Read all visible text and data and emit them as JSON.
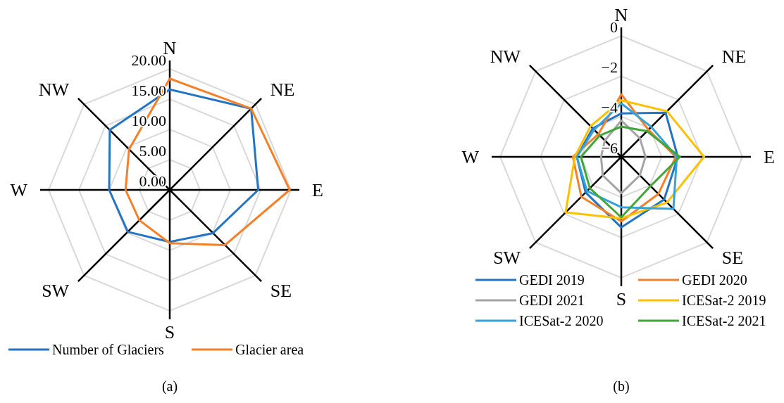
{
  "chart_data": [
    {
      "type": "radar",
      "title": "(a)",
      "categories": [
        "N",
        "NE",
        "E",
        "SE",
        "S",
        "SW",
        "W",
        "NW"
      ],
      "ylim": [
        0,
        20
      ],
      "yticks": [
        {
          "value": 0,
          "label": "0.00"
        },
        {
          "value": 5,
          "label": "5.00"
        },
        {
          "value": 10,
          "label": "10.00"
        },
        {
          "value": 15,
          "label": "15.00"
        },
        {
          "value": 20,
          "label": "20.00"
        }
      ],
      "grid": true,
      "legend": "bottom",
      "marker": "none",
      "series": [
        {
          "name": "Number of Glaciers",
          "color": "#2474c4",
          "values": [
            16.6,
            19.0,
            14.6,
            10.1,
            8.6,
            9.8,
            10.0,
            14.0
          ]
        },
        {
          "name": "Glacier area",
          "color": "#f4812a",
          "values": [
            18.4,
            19.0,
            19.8,
            12.9,
            8.8,
            7.1,
            7.3,
            9.5
          ]
        }
      ]
    },
    {
      "type": "radar",
      "title": "(b)",
      "categories": [
        "N",
        "NE",
        "E",
        "SE",
        "S",
        "SW",
        "W",
        "NW"
      ],
      "ylim": [
        -6,
        0
      ],
      "yticks": [
        {
          "value": -6,
          "label": "−6"
        },
        {
          "value": -4,
          "label": "−4"
        },
        {
          "value": -2,
          "label": "−2"
        },
        0
      ],
      "grid": true,
      "legend": "bottom",
      "marker": "none",
      "series": [
        {
          "name": "GEDI 2019",
          "color": "#2474c4",
          "values": [
            -3.85,
            -2.9,
            -3.2,
            -3.0,
            -2.5,
            -3.5,
            -3.8,
            -4.0
          ]
        },
        {
          "name": "GEDI 2020",
          "color": "#f4812a",
          "values": [
            -2.9,
            -4.1,
            -3.3,
            -3.4,
            -2.8,
            -3.2,
            -3.6,
            -4.4
          ]
        },
        {
          "name": "GEDI 2021",
          "color": "#a5a5a5",
          "values": [
            -4.2,
            -4.7,
            -4.8,
            -4.7,
            -4.2,
            -4.7,
            -5.0,
            -4.85
          ]
        },
        {
          "name": "ICESat-2 2019",
          "color": "#ffc000",
          "values": [
            -3.2,
            -2.8,
            -1.9,
            -2.8,
            -2.95,
            -2.1,
            -3.7,
            -3.85
          ]
        },
        {
          "name": "ICESat-2 2020",
          "color": "#34a3dc",
          "values": [
            -3.35,
            -3.9,
            -3.25,
            -2.35,
            -3.5,
            -3.6,
            -3.8,
            -4.1
          ]
        },
        {
          "name": "ICESat-2 2021",
          "color": "#43a63a",
          "values": [
            -4.5,
            -4.2,
            -3.1,
            -3.95,
            -3.0,
            -3.8,
            -4.0,
            -4.5
          ]
        }
      ]
    }
  ]
}
